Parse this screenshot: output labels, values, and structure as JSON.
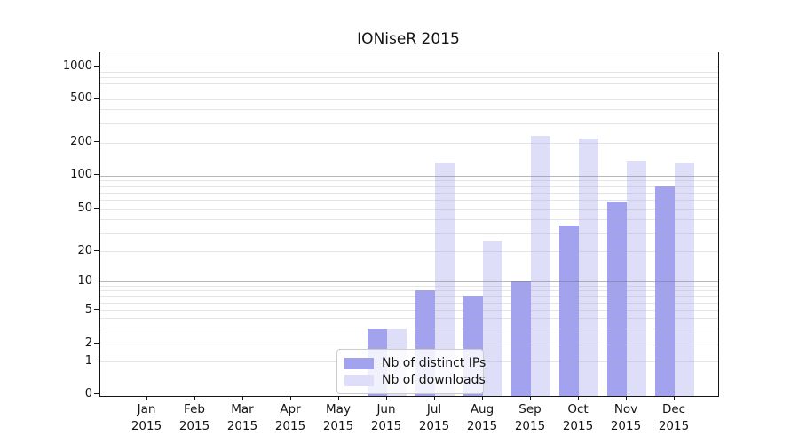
{
  "chart_data": {
    "type": "bar",
    "title": "IONiseR 2015",
    "y_scale": "pseudo-log",
    "grid": true,
    "legend_position": "bottom-center",
    "categories": [
      "Jan",
      "Feb",
      "Mar",
      "Apr",
      "May",
      "Jun",
      "Jul",
      "Aug",
      "Sep",
      "Oct",
      "Nov",
      "Dec"
    ],
    "year": "2015",
    "y_ticks": [
      0,
      1,
      2,
      5,
      10,
      20,
      50,
      100,
      200,
      500,
      1000
    ],
    "ylim": [
      0,
      1400
    ],
    "series": [
      {
        "name": "Nb of distinct IPs",
        "color": "#a2a2ee",
        "values": [
          0,
          0,
          0,
          0,
          0,
          3,
          8,
          7,
          10,
          35,
          58,
          80
        ]
      },
      {
        "name": "Nb of downloads",
        "color": "#dedef8",
        "values": [
          0,
          0,
          0,
          0,
          0,
          3,
          132,
          25,
          230,
          217,
          135,
          131
        ]
      }
    ]
  }
}
